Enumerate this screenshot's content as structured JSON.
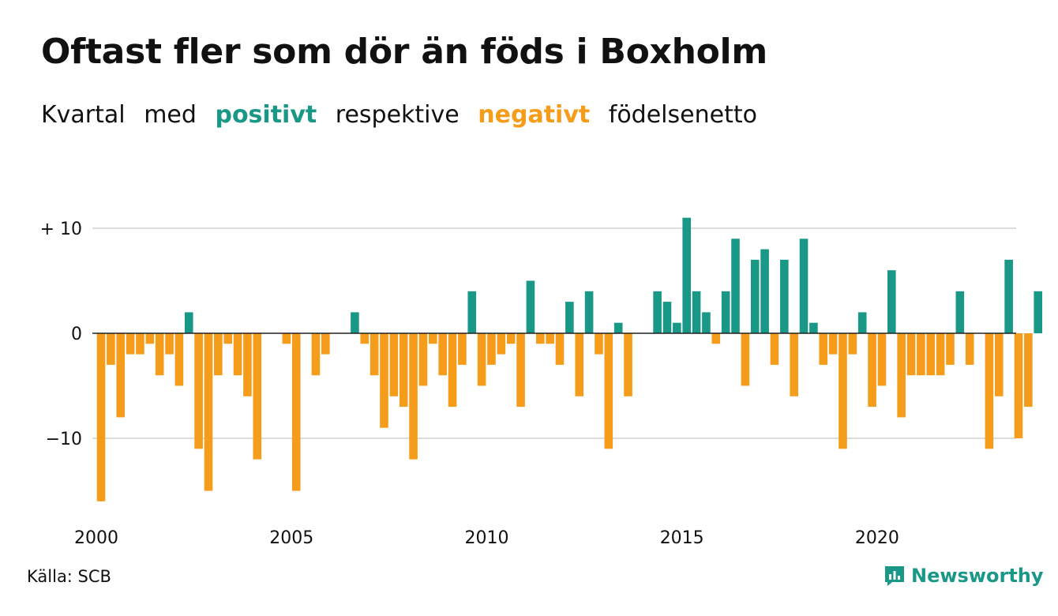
{
  "header": {
    "title": "Oftast fler som dör än föds i Boxholm",
    "subtitle": {
      "word1": "Kvartal",
      "word2": "med",
      "positive": "positivt",
      "word3": "respektive",
      "negative": "negativt",
      "word4": "födelsenetto"
    }
  },
  "footer": {
    "source": "Källa: SCB",
    "brand": "Newsworthy",
    "brand_icon": "newsworthy-logo-icon"
  },
  "colors": {
    "positive": "#1a9887",
    "negative": "#f59c1a",
    "grid": "#dddddd",
    "zero": "#222222",
    "text": "#111111"
  },
  "chart_data": {
    "type": "bar",
    "x_start": "2000 Q1",
    "x_tick_labels": [
      "2000",
      "2005",
      "2010",
      "2015",
      "2020"
    ],
    "y_ticks": [
      10,
      0,
      -10
    ],
    "y_tick_labels": [
      "+ 10",
      "0",
      "−10"
    ],
    "ylim": [
      -17,
      11.5
    ],
    "grid": "horizontal",
    "values": [
      -16,
      -3,
      -8,
      -2,
      -2,
      -1,
      -4,
      -2,
      -5,
      2,
      -11,
      -15,
      -4,
      -1,
      -4,
      -6,
      -12,
      0,
      0,
      -1,
      -15,
      0,
      -4,
      -2,
      0,
      0,
      2,
      -1,
      -4,
      -9,
      -6,
      -7,
      -12,
      -5,
      -1,
      -4,
      -7,
      -3,
      4,
      -5,
      -3,
      -2,
      -1,
      -7,
      5,
      -1,
      -1,
      -3,
      3,
      -6,
      4,
      -2,
      -11,
      1,
      -6,
      0,
      0,
      4,
      3,
      1,
      11,
      4,
      2,
      -1,
      4,
      9,
      -5,
      7,
      8,
      -3,
      7,
      -6,
      9,
      1,
      -3,
      -2,
      -11,
      -2,
      2,
      -7,
      -5,
      6,
      -8,
      -4,
      -4,
      -4,
      -4,
      -3,
      4,
      -3,
      0,
      -11,
      -6,
      7,
      -10,
      -7,
      4
    ]
  }
}
